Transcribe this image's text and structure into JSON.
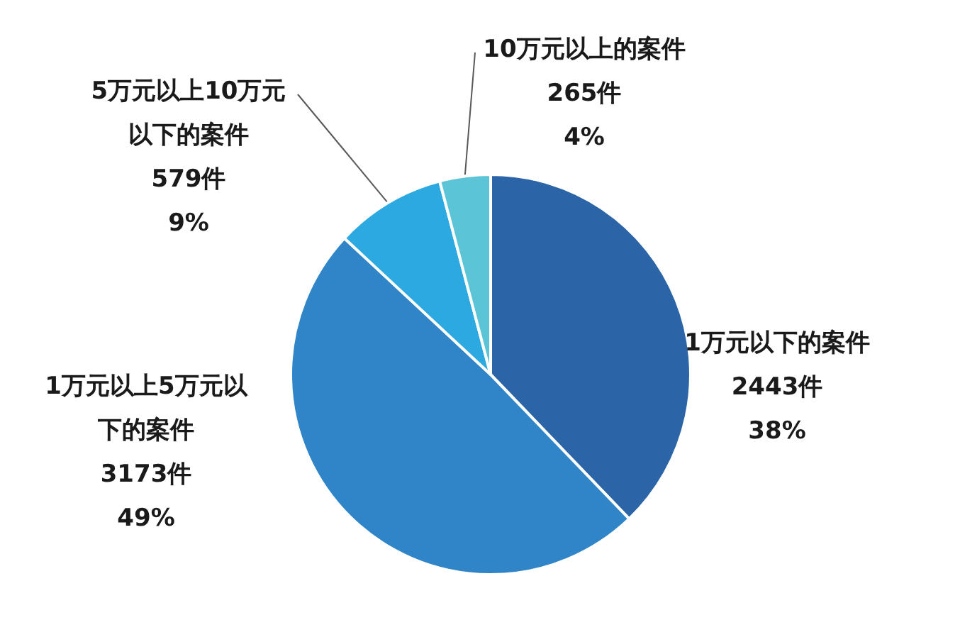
{
  "chart_data": {
    "type": "pie",
    "categories": [
      "1万元以下的案件",
      "1万元以上5万元以下的案件",
      "5万元以上10万元以下的案件",
      "10万元以上的案件"
    ],
    "values": [
      2443,
      3173,
      579,
      265
    ],
    "colors": [
      "#2b65a8",
      "#2f85c7",
      "#2ca9e1",
      "#5bc4d6"
    ],
    "value_labels": [
      "2443件\n38%",
      "3173件\n49%",
      "579件\n9%",
      "265件\n4%"
    ]
  }
}
